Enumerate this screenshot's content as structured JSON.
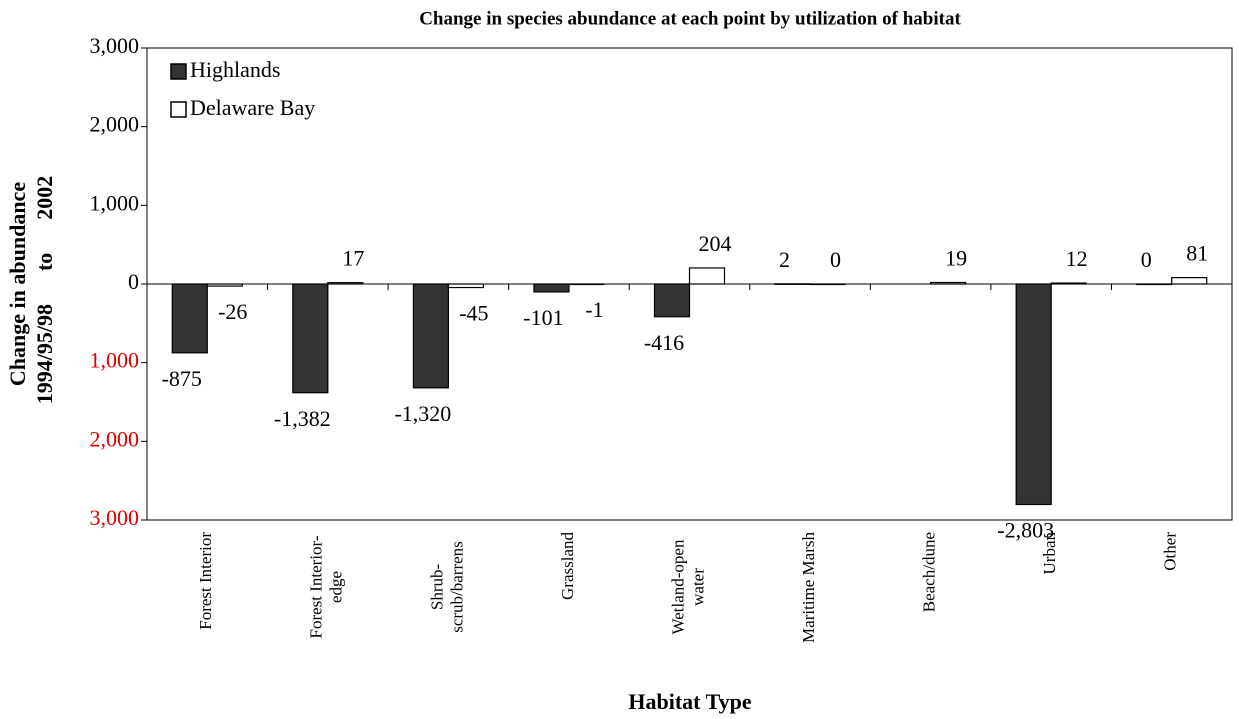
{
  "chart_data": {
    "type": "bar",
    "title": "Change in species abundance at each point  by utilization of habitat",
    "xlabel": "Habitat Type",
    "ylabel": [
      "Change in abundance",
      "1994/95/98      to      2002"
    ],
    "categories": [
      [
        "Forest Interior"
      ],
      [
        "Forest Interior-",
        "edge"
      ],
      [
        "Shrub-",
        "scrub/barrens"
      ],
      [
        "Grassland"
      ],
      [
        "Wetland-open",
        "water"
      ],
      [
        "Maritime Marsh"
      ],
      [
        "Beach/dune"
      ],
      [
        "Urban"
      ],
      [
        "Other"
      ]
    ],
    "series": [
      {
        "name": "Highlands",
        "color": "#333333",
        "values": [
          -875,
          -1382,
          -1320,
          -101,
          -416,
          2,
          null,
          -2803,
          0
        ],
        "value_labels": [
          "-875",
          "-1,382",
          "-1,320",
          "-101",
          "-416",
          "2",
          null,
          "-2,803",
          "0"
        ]
      },
      {
        "name": "Delaware Bay",
        "color": "#ffffff",
        "values": [
          -26,
          17,
          -45,
          -1,
          204,
          0,
          19,
          12,
          81
        ],
        "value_labels": [
          "-26",
          "17",
          "-45",
          "-1",
          "204",
          "0",
          "19",
          "12",
          "81"
        ]
      }
    ],
    "ylim": [
      -3000,
      3000
    ],
    "yticks": [
      {
        "value": -3000,
        "label": "3,000"
      },
      {
        "value": -2000,
        "label": "2,000"
      },
      {
        "value": -1000,
        "label": "1,000"
      },
      0,
      {
        "value": 1000,
        "label": "1,000"
      },
      {
        "value": 2000,
        "label": "2,000"
      },
      {
        "value": 3000,
        "label": "3,000"
      }
    ],
    "negative_tick_label_color": "#e00000",
    "legend": "top-left"
  }
}
